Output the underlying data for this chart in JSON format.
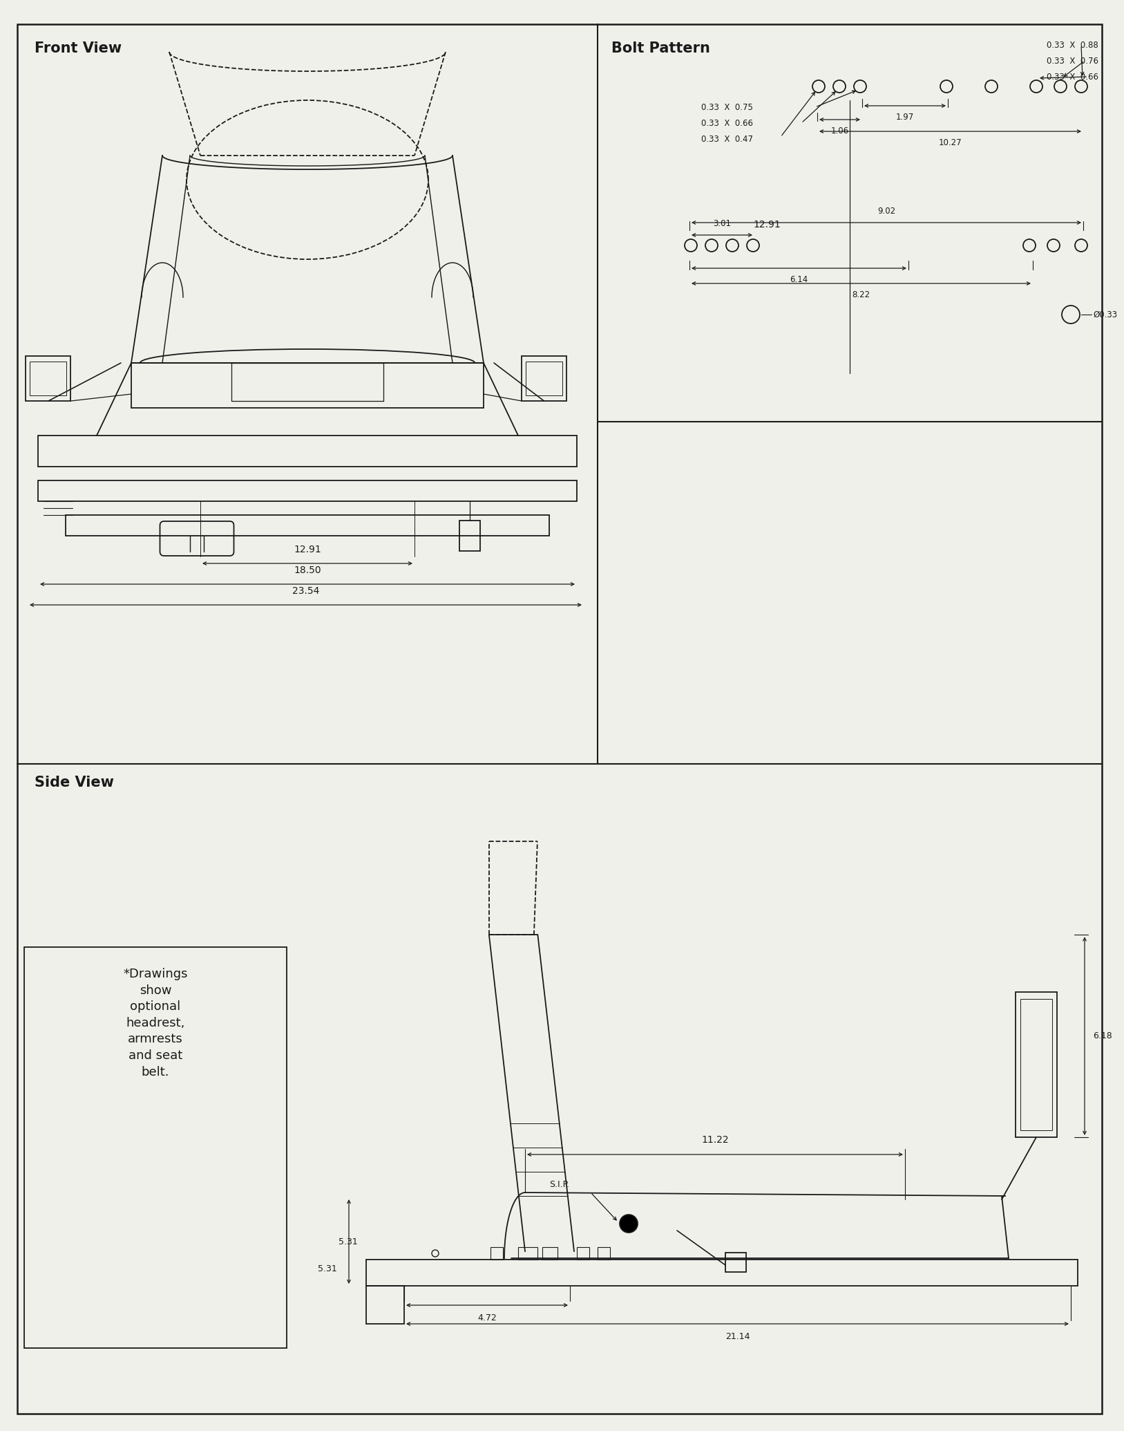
{
  "bg_color": "#f0f0eb",
  "line_color": "#1a1a1a",
  "text_color": "#1a1a1a",
  "front_view_label": "Front View",
  "bolt_pattern_label": "Bolt Pattern",
  "side_view_label": "Side View",
  "note": "*Drawings\nshow\noptional\nheadrest,\narmrests\nand seat\nbelt.",
  "front_dims": [
    "12.91",
    "18.50",
    "23.54"
  ],
  "bolt_labels_left": [
    "0.33  X  0.75",
    "0.33  X  0.66",
    "0.33  X  0.47"
  ],
  "bolt_labels_right": [
    "0.33  X  0.88",
    "0.33  X  0.76",
    "0.33  X  0.66"
  ],
  "bolt_dims": [
    "1.97",
    "1.06",
    "10.27",
    "12.91",
    "9.02",
    "3.01",
    "6.14",
    "8.22",
    "Ø0.33"
  ],
  "side_dims": [
    "11.22",
    "5.31",
    "4.72",
    "21.14",
    "6.18"
  ],
  "sip_label": "S.I.P."
}
